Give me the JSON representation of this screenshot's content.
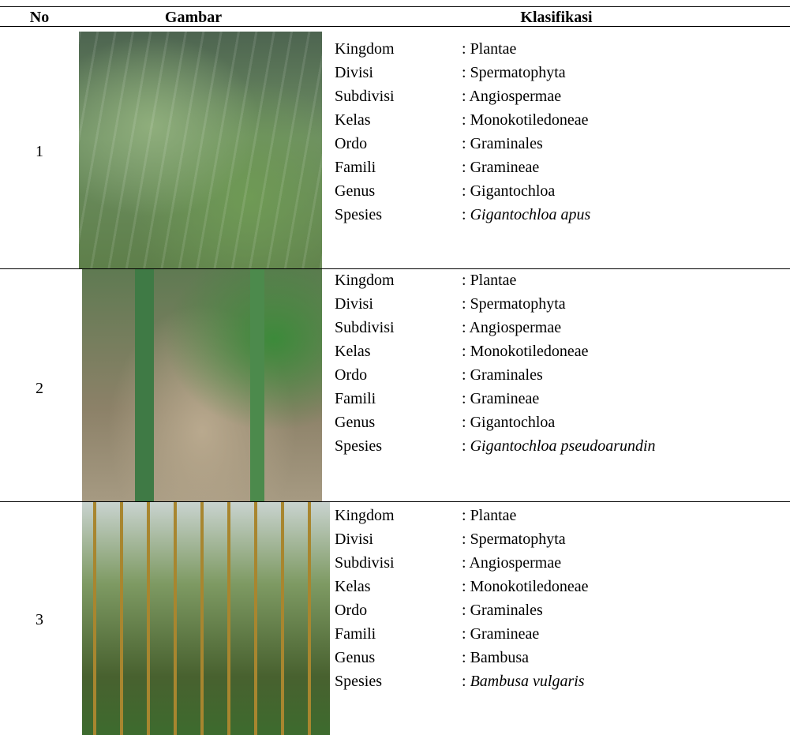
{
  "table": {
    "header": [
      "No",
      "Gambar",
      "Klasifikasi"
    ],
    "separator": ":",
    "rows": [
      {
        "no": "1",
        "items": [
          {
            "label": "Kingdom",
            "value": "Plantae"
          },
          {
            "label": "Divisi",
            "value": "Spermatophyta"
          },
          {
            "label": "Subdivisi",
            "value": "Angiospermae"
          },
          {
            "label": "Kelas",
            "value": "Monokotiledoneae"
          },
          {
            "label": "Ordo",
            "value": "Graminales"
          },
          {
            "label": "Famili",
            "value": "Gramineae"
          },
          {
            "label": "Genus",
            "value": "Gigantochloa"
          },
          {
            "label": "Spesies",
            "value": "Gigantochloa apus",
            "italic": true
          }
        ]
      },
      {
        "no": "2",
        "items": [
          {
            "label": "Kingdom",
            "value": "Plantae"
          },
          {
            "label": "Divisi",
            "value": "Spermatophyta"
          },
          {
            "label": "Subdivisi",
            "value": "Angiospermae"
          },
          {
            "label": "Kelas",
            "value": "Monokotiledoneae"
          },
          {
            "label": "Ordo",
            "value": "Graminales"
          },
          {
            "label": "Famili",
            "value": "Gramineae"
          },
          {
            "label": "Genus",
            "value": "Gigantochloa"
          },
          {
            "label": "Spesies",
            "value": "Gigantochloa pseudoarundin",
            "italic": true
          }
        ]
      },
      {
        "no": "3",
        "items": [
          {
            "label": "Kingdom",
            "value": "Plantae"
          },
          {
            "label": "Divisi",
            "value": "Spermatophyta"
          },
          {
            "label": "Subdivisi",
            "value": "Angiospermae"
          },
          {
            "label": "Kelas",
            "value": "Monokotiledoneae"
          },
          {
            "label": "Ordo",
            "value": "Graminales"
          },
          {
            "label": "Famili",
            "value": "Gramineae"
          },
          {
            "label": "Genus",
            "value": "Bambusa"
          },
          {
            "label": "Spesies",
            "value": "Bambusa vulgaris",
            "italic": true
          }
        ]
      }
    ]
  }
}
